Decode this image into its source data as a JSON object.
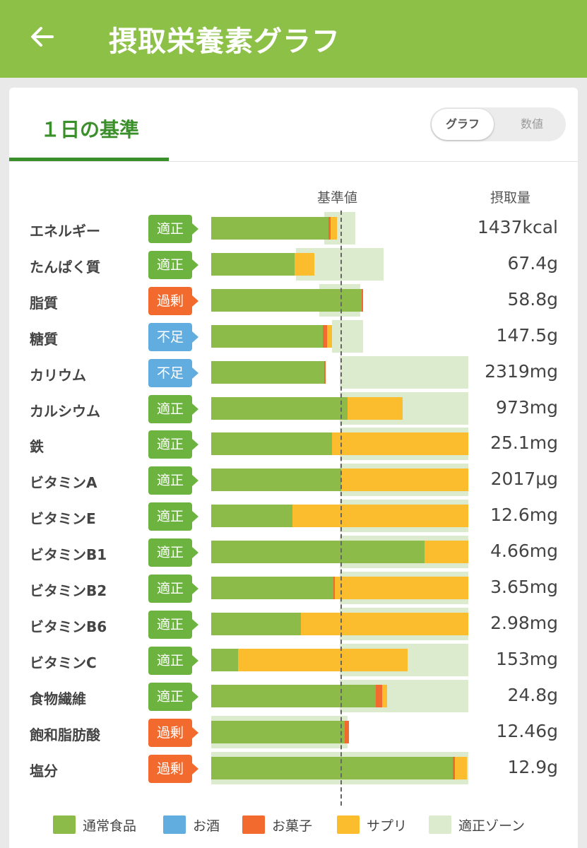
{
  "header": {
    "title": "摂取栄養素グラフ",
    "back_icon": "arrow-left-icon"
  },
  "tab": {
    "label": "１日の基準"
  },
  "toggle": {
    "graph_label": "グラフ",
    "value_label": "数値",
    "selected": "グラフ"
  },
  "columns": {
    "reference": "基準値",
    "intake": "摂取量"
  },
  "colors": {
    "normal_food": "#8cbb4a",
    "alcohol": "#62ade0",
    "snacks": "#f26a2d",
    "supplement": "#fbbd2e",
    "zone": "#dcebcd",
    "status_ok": "#6cb33f",
    "status_excess": "#f26a2d",
    "status_lack": "#62ade0"
  },
  "nutrients": [
    {
      "name": "エネルギー",
      "status": "適正",
      "status_type": "ok",
      "value": "1437kcal",
      "zone": [
        44,
        56
      ],
      "bars": {
        "food": 45.5,
        "snack": 0.8,
        "supp": 2.5
      }
    },
    {
      "name": "たんぱく質",
      "status": "適正",
      "status_type": "ok",
      "value": "67.4g",
      "zone": [
        33,
        67
      ],
      "bars": {
        "food": 32.5,
        "snack": 0,
        "supp": 7.5
      }
    },
    {
      "name": "脂質",
      "status": "過剰",
      "status_type": "excess",
      "value": "58.8g",
      "zone": [
        42,
        58
      ],
      "bars": {
        "food": 58.5,
        "snack": 0.5,
        "supp": 0
      }
    },
    {
      "name": "糖質",
      "status": "不足",
      "status_type": "lack",
      "value": "147.5g",
      "zone": [
        47,
        59
      ],
      "bars": {
        "food": 43.5,
        "snack": 1.5,
        "supp": 2
      }
    },
    {
      "name": "カリウム",
      "status": "不足",
      "status_type": "lack",
      "value": "2319mg",
      "zone": [
        50,
        100
      ],
      "bars": {
        "food": 44,
        "snack": 0.5,
        "supp": 0
      }
    },
    {
      "name": "カルシウム",
      "status": "適正",
      "status_type": "ok",
      "value": "973mg",
      "zone": [
        50,
        100
      ],
      "bars": {
        "food": 53,
        "snack": 0,
        "supp": 21.5
      }
    },
    {
      "name": "鉄",
      "status": "適正",
      "status_type": "ok",
      "value": "25.1mg",
      "zone": [
        50,
        100
      ],
      "bars": {
        "food": 47,
        "snack": 0,
        "supp": 53
      }
    },
    {
      "name": "ビタミンA",
      "status": "適正",
      "status_type": "ok",
      "value": "2017μg",
      "zone": [
        50,
        100
      ],
      "bars": {
        "food": 50.5,
        "snack": 0,
        "supp": 49.5
      }
    },
    {
      "name": "ビタミンE",
      "status": "適正",
      "status_type": "ok",
      "value": "12.6mg",
      "zone": [
        50,
        100
      ],
      "bars": {
        "food": 31.5,
        "snack": 0,
        "supp": 68.5
      }
    },
    {
      "name": "ビタミンB1",
      "status": "適正",
      "status_type": "ok",
      "value": "4.66mg",
      "zone": [
        50,
        100
      ],
      "bars": {
        "food": 83,
        "snack": 0,
        "supp": 17
      }
    },
    {
      "name": "ビタミンB2",
      "status": "適正",
      "status_type": "ok",
      "value": "3.65mg",
      "zone": [
        50,
        100
      ],
      "bars": {
        "food": 47.5,
        "snack": 0.5,
        "supp": 52
      }
    },
    {
      "name": "ビタミンB6",
      "status": "適正",
      "status_type": "ok",
      "value": "2.98mg",
      "zone": [
        50,
        100
      ],
      "bars": {
        "food": 35,
        "snack": 0,
        "supp": 65
      }
    },
    {
      "name": "ビタミンC",
      "status": "適正",
      "status_type": "ok",
      "value": "153mg",
      "zone": [
        50,
        100
      ],
      "bars": {
        "food": 10.5,
        "snack": 0,
        "supp": 66
      }
    },
    {
      "name": "食物繊維",
      "status": "適正",
      "status_type": "ok",
      "value": "24.8g",
      "zone": [
        50,
        100
      ],
      "bars": {
        "food": 64,
        "snack": 2.5,
        "supp": 2
      }
    },
    {
      "name": "飽和脂肪酸",
      "status": "過剰",
      "status_type": "excess",
      "value": "12.46g",
      "zone": [
        0,
        53
      ],
      "bars": {
        "food": 52,
        "snack": 1.5,
        "supp": 0
      }
    },
    {
      "name": "塩分",
      "status": "過剰",
      "status_type": "excess",
      "value": "12.9g",
      "zone": [
        0,
        100
      ],
      "bars": {
        "food": 94,
        "snack": 0.8,
        "supp": 4.7
      }
    }
  ],
  "legend": [
    {
      "label": "通常食品",
      "color": "#8cbb4a"
    },
    {
      "label": "お酒",
      "color": "#62ade0"
    },
    {
      "label": "お菓子",
      "color": "#f26a2d"
    },
    {
      "label": "サプリ",
      "color": "#fbbd2e"
    },
    {
      "label": "適正ゾーン",
      "color": "#dcebcd"
    }
  ]
}
